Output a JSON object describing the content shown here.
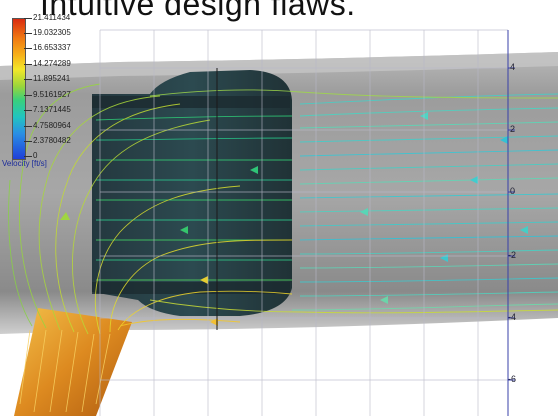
{
  "heading": "Intuitive design flaws.",
  "legend": {
    "title": "Velocity [ft/s]",
    "labels": [
      "21.411434",
      "19.032305",
      "16.653337",
      "14.274289",
      "11.895241",
      "9.5161927",
      "7.1371445",
      "4.7580964",
      "2.3780482",
      "0"
    ]
  },
  "axis": {
    "labels": [
      "4",
      "2",
      "0",
      "-2",
      "-4",
      "-6"
    ]
  },
  "colors": {
    "pipe": "#9a9a9a",
    "chamber": "#243c44",
    "inlet": "#e39a2a",
    "grid": "#b8b8c8",
    "axis": "#3840a8"
  }
}
